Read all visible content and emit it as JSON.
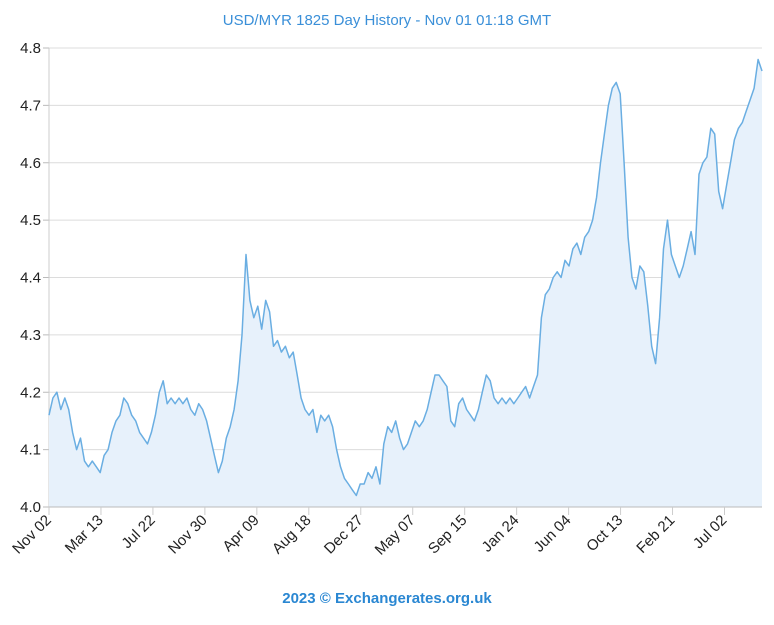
{
  "chart_data": {
    "type": "area",
    "title": "USD/MYR 1825 Day History - Nov 01 01:18 GMT",
    "footer": "2023 © Exchangerates.org.uk",
    "xlabel": "",
    "ylabel": "",
    "ylim": [
      4.0,
      4.8
    ],
    "xlim_days": [
      0,
      1825
    ],
    "y_ticks": [
      "4.0",
      "4.1",
      "4.2",
      "4.3",
      "4.4",
      "4.5",
      "4.6",
      "4.7",
      "4.8"
    ],
    "x_ticks": [
      {
        "label": "Nov 02",
        "day": 0
      },
      {
        "label": "Mar 13",
        "day": 133
      },
      {
        "label": "Jul 22",
        "day": 266
      },
      {
        "label": "Nov 30",
        "day": 399
      },
      {
        "label": "Apr 09",
        "day": 532
      },
      {
        "label": "Aug 18",
        "day": 665
      },
      {
        "label": "Dec 27",
        "day": 798
      },
      {
        "label": "May 07",
        "day": 931
      },
      {
        "label": "Sep 15",
        "day": 1064
      },
      {
        "label": "Jan 24",
        "day": 1197
      },
      {
        "label": "Jun 04",
        "day": 1330
      },
      {
        "label": "Oct 13",
        "day": 1463
      },
      {
        "label": "Feb 21",
        "day": 1596
      },
      {
        "label": "Jul 02",
        "day": 1729
      }
    ],
    "grid": true,
    "colors": {
      "line": "#6aaee2",
      "fill": "#e7f1fb",
      "grid": "#dcdcdc",
      "title": "#3a8fd8"
    },
    "series": [
      {
        "name": "USD/MYR",
        "values": [
          4.16,
          4.19,
          4.2,
          4.17,
          4.19,
          4.17,
          4.13,
          4.1,
          4.12,
          4.08,
          4.07,
          4.08,
          4.07,
          4.06,
          4.09,
          4.1,
          4.13,
          4.15,
          4.16,
          4.19,
          4.18,
          4.16,
          4.15,
          4.13,
          4.12,
          4.11,
          4.13,
          4.16,
          4.2,
          4.22,
          4.18,
          4.19,
          4.18,
          4.19,
          4.18,
          4.19,
          4.17,
          4.16,
          4.18,
          4.17,
          4.15,
          4.12,
          4.09,
          4.06,
          4.08,
          4.12,
          4.14,
          4.17,
          4.22,
          4.3,
          4.44,
          4.36,
          4.33,
          4.35,
          4.31,
          4.36,
          4.34,
          4.28,
          4.29,
          4.27,
          4.28,
          4.26,
          4.27,
          4.23,
          4.19,
          4.17,
          4.16,
          4.17,
          4.13,
          4.16,
          4.15,
          4.16,
          4.14,
          4.1,
          4.07,
          4.05,
          4.04,
          4.03,
          4.02,
          4.04,
          4.04,
          4.06,
          4.05,
          4.07,
          4.04,
          4.11,
          4.14,
          4.13,
          4.15,
          4.12,
          4.1,
          4.11,
          4.13,
          4.15,
          4.14,
          4.15,
          4.17,
          4.2,
          4.23,
          4.23,
          4.22,
          4.21,
          4.15,
          4.14,
          4.18,
          4.19,
          4.17,
          4.16,
          4.15,
          4.17,
          4.2,
          4.23,
          4.22,
          4.19,
          4.18,
          4.19,
          4.18,
          4.19,
          4.18,
          4.19,
          4.2,
          4.21,
          4.19,
          4.21,
          4.23,
          4.33,
          4.37,
          4.38,
          4.4,
          4.41,
          4.4,
          4.43,
          4.42,
          4.45,
          4.46,
          4.44,
          4.47,
          4.48,
          4.5,
          4.54,
          4.6,
          4.65,
          4.7,
          4.73,
          4.74,
          4.72,
          4.6,
          4.47,
          4.4,
          4.38,
          4.42,
          4.41,
          4.35,
          4.28,
          4.25,
          4.33,
          4.45,
          4.5,
          4.44,
          4.42,
          4.4,
          4.42,
          4.45,
          4.48,
          4.44,
          4.58,
          4.6,
          4.61,
          4.66,
          4.65,
          4.55,
          4.52,
          4.56,
          4.6,
          4.64,
          4.66,
          4.67,
          4.69,
          4.71,
          4.73,
          4.78,
          4.76
        ]
      }
    ]
  }
}
